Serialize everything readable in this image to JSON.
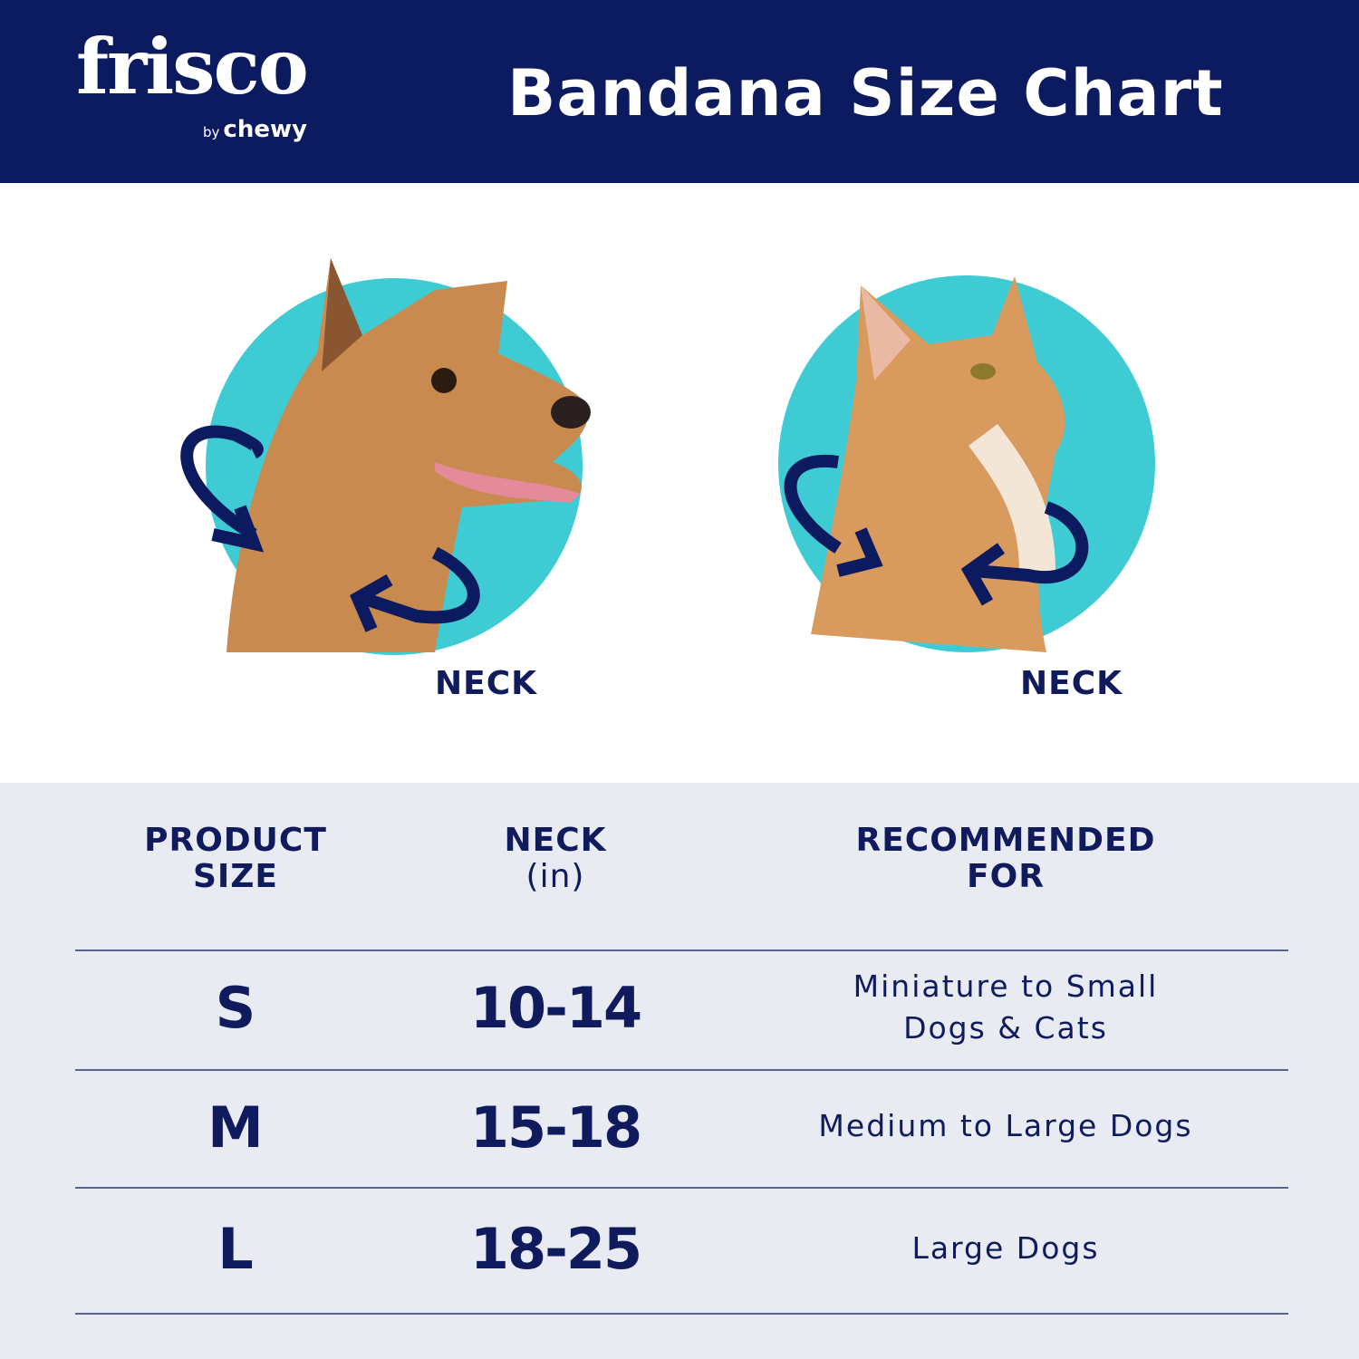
{
  "header": {
    "logo": {
      "brand": "frisco",
      "byline_prefix": "by",
      "byline_brand": "chewy"
    },
    "title": "Bandana Size Chart"
  },
  "illustrations": [
    {
      "animal": "dog",
      "label": "NECK"
    },
    {
      "animal": "cat",
      "label": "NECK"
    }
  ],
  "colors": {
    "navy": "#0c1a5f",
    "teal": "#3ecbd4",
    "table_bg": "#e8ebf2"
  },
  "table": {
    "headers": [
      {
        "line1": "PRODUCT",
        "line2": "SIZE"
      },
      {
        "line1": "NECK",
        "line2": "(in)"
      },
      {
        "line1": "RECOMMENDED",
        "line2": "FOR"
      }
    ],
    "rows": [
      {
        "size": "S",
        "neck": "10-14",
        "rec_line1": "Miniature to Small",
        "rec_line2": "Dogs & Cats"
      },
      {
        "size": "M",
        "neck": "15-18",
        "rec_line1": "Medium to Large Dogs",
        "rec_line2": ""
      },
      {
        "size": "L",
        "neck": "18-25",
        "rec_line1": "Large Dogs",
        "rec_line2": ""
      }
    ]
  }
}
